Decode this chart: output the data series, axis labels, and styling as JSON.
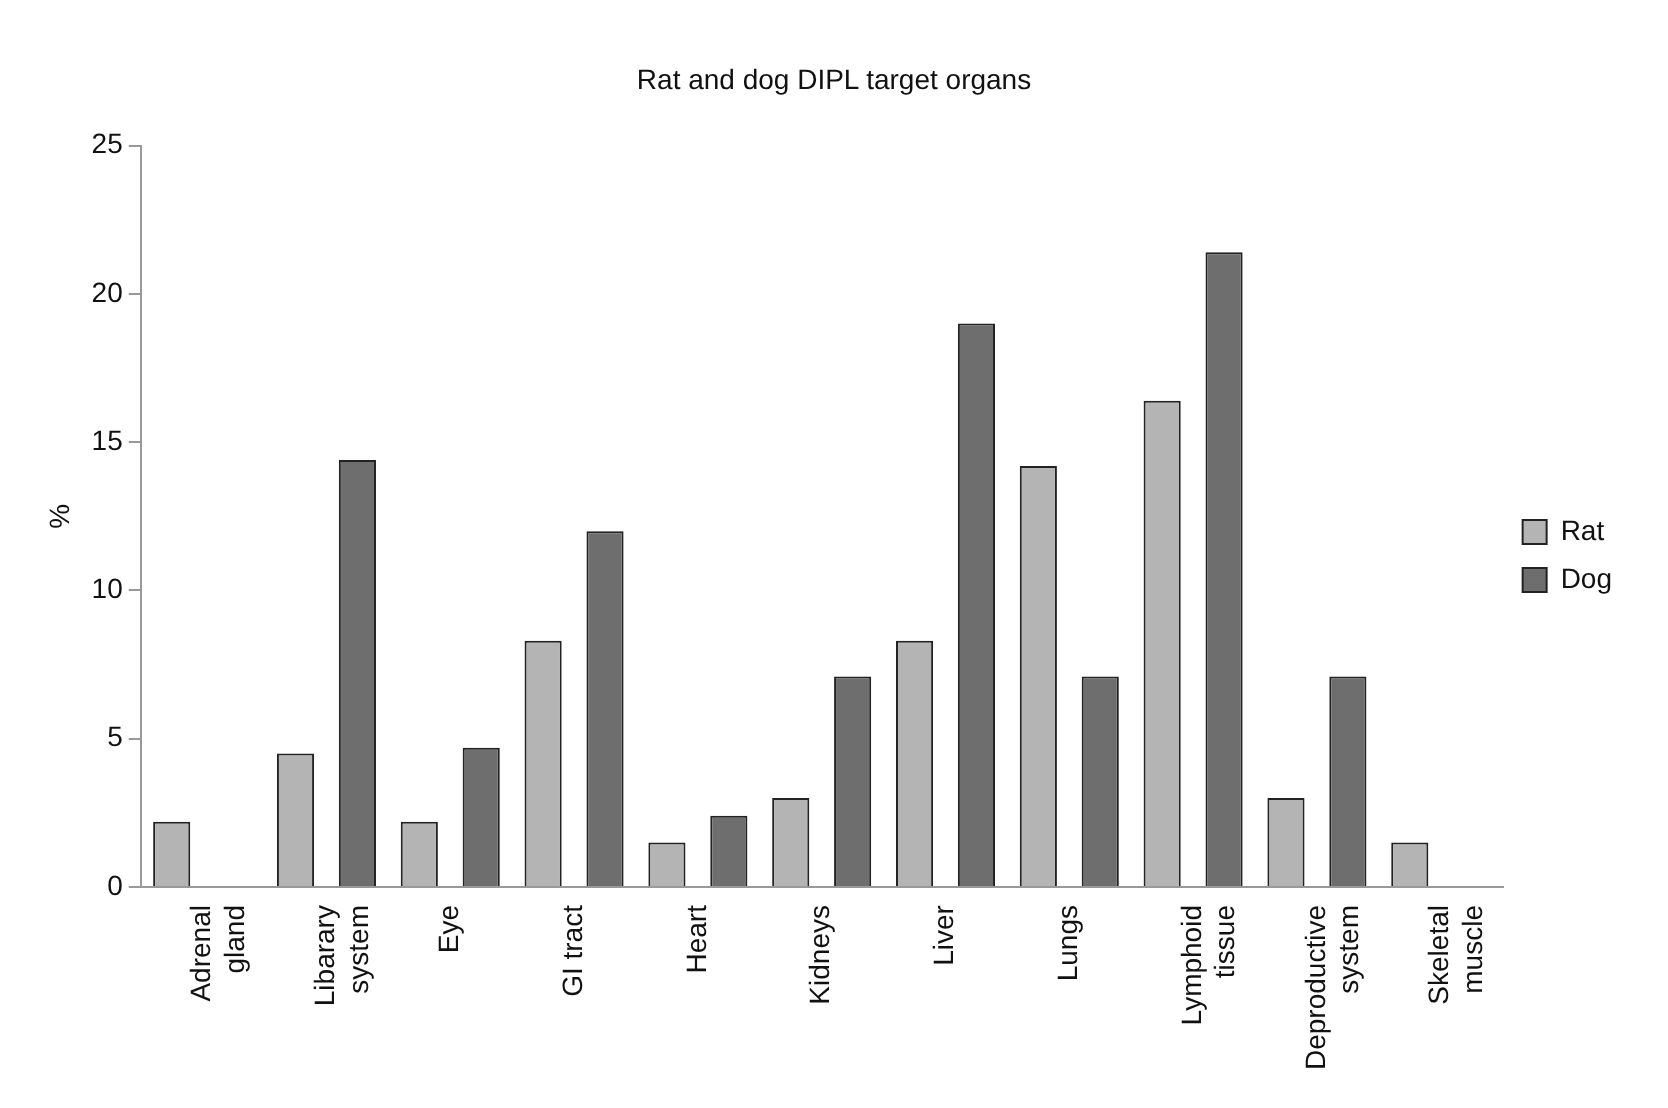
{
  "chart_data": {
    "type": "bar",
    "title": "Rat and dog DIPL target organs",
    "ylabel": "%",
    "categories": [
      "Adrenal gland",
      "Libarary system",
      "Eye",
      "GI tract",
      "Heart",
      "Kidneys",
      "Liver",
      "Lungs",
      "Lymphoid tissue",
      "Deproductive system",
      "Skeletal muscle"
    ],
    "series": [
      {
        "name": "Rat",
        "color": "#b4b4b4",
        "values": [
          2.2,
          4.5,
          2.2,
          8.3,
          1.5,
          3.0,
          8.3,
          14.2,
          16.4,
          3.0,
          1.5
        ]
      },
      {
        "name": "Dog",
        "color": "#6e6e6e",
        "values": [
          null,
          14.4,
          4.7,
          12.0,
          2.4,
          7.1,
          19.0,
          7.1,
          21.4,
          7.1,
          null
        ]
      }
    ],
    "ylim": [
      0,
      25
    ],
    "yticks": [
      0,
      5,
      10,
      15,
      20,
      25
    ],
    "grid": false,
    "legend": "right"
  }
}
